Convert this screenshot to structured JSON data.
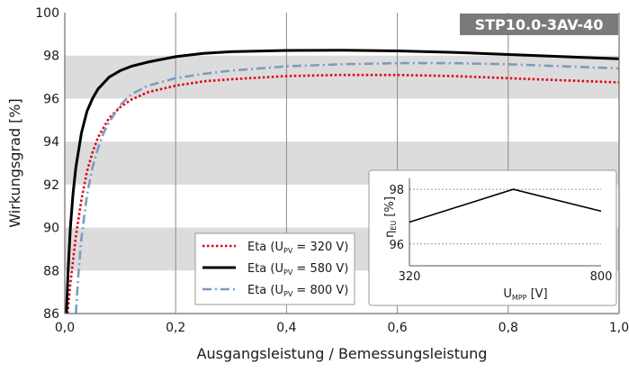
{
  "chart_data": [
    {
      "type": "line",
      "model_label": "STP10.0-3AV-40",
      "xlabel": "Ausgangsleistung / Bemessungsleistung",
      "ylabel": "Wirkungsgrad [%]",
      "xlim": [
        0.0,
        1.0
      ],
      "ylim": [
        86,
        100
      ],
      "x_ticks": [
        0.0,
        0.2,
        0.4,
        0.6,
        0.8,
        1.0
      ],
      "x_tick_labels": [
        "0,0",
        "0,2",
        "0,4",
        "0,6",
        "0,8",
        "1,0"
      ],
      "y_ticks": [
        86,
        88,
        90,
        92,
        94,
        96,
        98,
        100
      ],
      "y_tick_labels": [
        "86",
        "88",
        "90",
        "92",
        "94",
        "96",
        "98",
        "100"
      ],
      "grid": "alternating horizontal bands, vertical gridlines",
      "legend_position": "lower-center",
      "series": [
        {
          "label_prefix": "Eta (U",
          "label_sub": "PV",
          "label_suffix": " = 320 V)",
          "color": "#e2001a",
          "style": "dotted",
          "x": [
            0.005,
            0.01,
            0.02,
            0.03,
            0.04,
            0.05,
            0.06,
            0.08,
            0.1,
            0.12,
            0.15,
            0.2,
            0.25,
            0.3,
            0.4,
            0.5,
            0.6,
            0.7,
            0.8,
            0.9,
            1.0
          ],
          "y": [
            86.0,
            87.4,
            89.6,
            91.3,
            92.6,
            93.5,
            94.2,
            95.1,
            95.6,
            95.95,
            96.3,
            96.6,
            96.8,
            96.9,
            97.05,
            97.1,
            97.1,
            97.05,
            96.95,
            96.85,
            96.75
          ]
        },
        {
          "label_prefix": "Eta (U",
          "label_sub": "PV",
          "label_suffix": " = 580 V)",
          "color": "#000000",
          "style": "solid",
          "x": [
            0.003,
            0.006,
            0.01,
            0.015,
            0.02,
            0.03,
            0.04,
            0.05,
            0.06,
            0.08,
            0.1,
            0.12,
            0.15,
            0.2,
            0.25,
            0.3,
            0.4,
            0.5,
            0.6,
            0.7,
            0.8,
            0.9,
            1.0
          ],
          "y": [
            86.0,
            88.0,
            90.0,
            91.6,
            92.8,
            94.4,
            95.4,
            96.0,
            96.45,
            97.0,
            97.3,
            97.5,
            97.7,
            97.95,
            98.1,
            98.18,
            98.24,
            98.25,
            98.22,
            98.15,
            98.05,
            97.95,
            97.85
          ]
        },
        {
          "label_prefix": "Eta (U",
          "label_sub": "PV",
          "label_suffix": " = 800 V)",
          "color": "#7d9cbe",
          "style": "dash-dot",
          "x": [
            0.02,
            0.025,
            0.03,
            0.04,
            0.05,
            0.06,
            0.07,
            0.08,
            0.1,
            0.12,
            0.15,
            0.2,
            0.25,
            0.3,
            0.4,
            0.5,
            0.6,
            0.7,
            0.8,
            0.9,
            1.0
          ],
          "y": [
            86.0,
            88.0,
            89.5,
            91.5,
            92.8,
            93.7,
            94.4,
            94.9,
            95.7,
            96.2,
            96.6,
            96.95,
            97.15,
            97.3,
            97.5,
            97.6,
            97.65,
            97.65,
            97.6,
            97.5,
            97.4
          ]
        }
      ]
    },
    {
      "type": "line",
      "xlabel_main": "U",
      "xlabel_sub": "MPP",
      "xlabel_unit": " [V]",
      "ylabel_main": "η",
      "ylabel_sub": "EU",
      "ylabel_unit": " [%]",
      "xlim": [
        320,
        800
      ],
      "ylim": [
        95.2,
        98.4
      ],
      "x_ticks": [
        320,
        800
      ],
      "x_tick_labels": [
        "320",
        "800"
      ],
      "y_ticks": [
        96,
        98
      ],
      "y_tick_labels": [
        "96",
        "98"
      ],
      "grid": "dotted horizontal",
      "series": [
        {
          "color": "#000000",
          "x": [
            320,
            580,
            800
          ],
          "y": [
            96.8,
            98.0,
            97.2
          ]
        }
      ]
    }
  ]
}
